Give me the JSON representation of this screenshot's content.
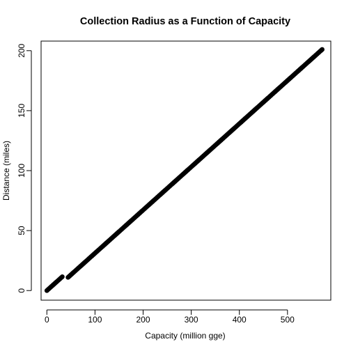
{
  "chart_data": {
    "type": "scatter",
    "title": "Collection Radius as a Function of Capacity",
    "xlabel": "Capacity (million gge)",
    "ylabel": "Distance (miles)",
    "xlim": [
      -12,
      590
    ],
    "ylim": [
      -8,
      208
    ],
    "xticks": [
      0,
      100,
      200,
      300,
      400,
      500
    ],
    "yticks": [
      0,
      50,
      100,
      150,
      200
    ],
    "grid": false,
    "legend": "none",
    "marker_color": "#000000",
    "series": [
      {
        "segments": [
          {
            "x0": 0,
            "y0": 0,
            "x1": 32,
            "y1": 11.5
          },
          {
            "x0": 44,
            "y0": 11,
            "x1": 572,
            "y1": 201
          }
        ]
      }
    ]
  }
}
